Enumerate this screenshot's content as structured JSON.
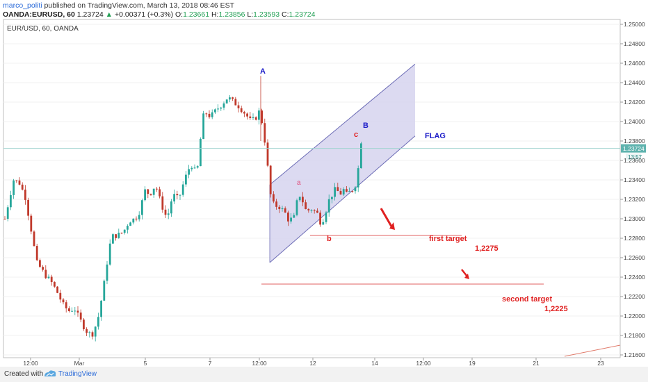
{
  "header": {
    "author": "marco_politi",
    "published": "published on TradingView.com, March 13, 2018 08:46 EST",
    "symbol": "OANDA:EURUSD, 60",
    "last": "1.23724",
    "change_arrow": "▲",
    "change": "+0.00371 (+0.3%)",
    "o_label": "O:",
    "o_value": "1.23661",
    "h_label": "H:",
    "h_value": "1.23856",
    "l_label": "L:",
    "l_value": "1.23593",
    "c_label": "C:",
    "c_value": "1.23724"
  },
  "footer": {
    "created_with": "Created with",
    "brand": "TradingView"
  },
  "colors": {
    "up": "#26a69a",
    "down": "#c0392b",
    "channel_fill": "#d6d3ee",
    "channel_line": "#6b6bb5",
    "annotation_blue": "#1c1cc8",
    "annotation_red": "#e02020",
    "price_tag": "#5fb3ae"
  },
  "chart_data": {
    "type": "candlestick",
    "instrument_label": "EUR/USD, 60, OANDA",
    "y_ticks": [
      "1.25000",
      "1.24800",
      "1.24600",
      "1.24400",
      "1.24200",
      "1.24000",
      "1.23800",
      "1.23600",
      "1.23400",
      "1.23200",
      "1.23000",
      "1.22800",
      "1.22600",
      "1.22400",
      "1.22200",
      "1.22000",
      "1.21800",
      "1.21600"
    ],
    "ylim": [
      1.215,
      1.251
    ],
    "x_ticks": [
      "12:00",
      "Mar",
      "5",
      "7",
      "12:00",
      "12",
      "14",
      "12:00",
      "19",
      "21",
      "23"
    ],
    "current_price": "1.23724",
    "countdown": "13:57",
    "close_path": [
      [
        0,
        1.23
      ],
      [
        3,
        1.234
      ],
      [
        5,
        1.2337
      ],
      [
        7,
        1.2323
      ],
      [
        9,
        1.229
      ],
      [
        11,
        1.2255
      ],
      [
        14,
        1.2242
      ],
      [
        16,
        1.2235
      ],
      [
        18,
        1.2225
      ],
      [
        20,
        1.2212
      ],
      [
        22,
        1.2205
      ],
      [
        24,
        1.2208
      ],
      [
        26,
        1.2196
      ],
      [
        28,
        1.2185
      ],
      [
        30,
        1.218
      ],
      [
        32,
        1.2195
      ],
      [
        34,
        1.2228
      ],
      [
        36,
        1.227
      ],
      [
        37,
        1.2282
      ],
      [
        39,
        1.2283
      ],
      [
        41,
        1.2287
      ],
      [
        43,
        1.2298
      ],
      [
        45,
        1.23
      ],
      [
        47,
        1.231
      ],
      [
        48,
        1.233
      ],
      [
        50,
        1.2325
      ],
      [
        52,
        1.2335
      ],
      [
        54,
        1.2315
      ],
      [
        56,
        1.23
      ],
      [
        58,
        1.2325
      ],
      [
        60,
        1.232
      ],
      [
        62,
        1.234
      ],
      [
        64,
        1.2355
      ],
      [
        65,
        1.2355
      ],
      [
        66,
        1.2345
      ],
      [
        67,
        1.236
      ],
      [
        68,
        1.24
      ],
      [
        69,
        1.241
      ],
      [
        71,
        1.2405
      ],
      [
        73,
        1.2412
      ],
      [
        75,
        1.2418
      ],
      [
        77,
        1.2425
      ],
      [
        79,
        1.242
      ],
      [
        81,
        1.2415
      ],
      [
        83,
        1.2408
      ],
      [
        85,
        1.24
      ],
      [
        87,
        1.2405
      ],
      [
        88,
        1.2412
      ],
      [
        89,
        1.2395
      ],
      [
        90,
        1.2375
      ],
      [
        91,
        1.2345
      ],
      [
        92,
        1.2318
      ],
      [
        93,
        1.2314
      ],
      [
        95,
        1.2312
      ],
      [
        97,
        1.2305
      ],
      [
        98,
        1.2298
      ],
      [
        100,
        1.2302
      ],
      [
        101,
        1.232
      ],
      [
        102,
        1.2325
      ],
      [
        104,
        1.2308
      ],
      [
        106,
        1.231
      ],
      [
        108,
        1.2305
      ],
      [
        109,
        1.2296
      ],
      [
        110,
        1.23
      ],
      [
        112,
        1.232
      ],
      [
        114,
        1.233
      ],
      [
        116,
        1.2326
      ],
      [
        117,
        1.233
      ],
      [
        118,
        1.2325
      ],
      [
        120,
        1.233
      ],
      [
        121,
        1.2335
      ],
      [
        122,
        1.2352
      ],
      [
        123,
        1.238
      ]
    ],
    "channel": {
      "lower": [
        [
          1.2255,
          0
        ],
        [
          1.2348,
          1
        ]
      ],
      "upper": [
        [
          1.2335,
          0
        ],
        [
          1.2422,
          1
        ]
      ]
    },
    "horizontal_levels": [
      {
        "value": 1.2275,
        "label": "first target",
        "value_label": "1,2275"
      },
      {
        "value": 1.2225,
        "label": "second target",
        "value_label": "1,2225"
      }
    ],
    "annotations": {
      "A": "A",
      "B": "B",
      "a": "a",
      "b": "b",
      "c": "c",
      "flag": "FLAG"
    }
  }
}
